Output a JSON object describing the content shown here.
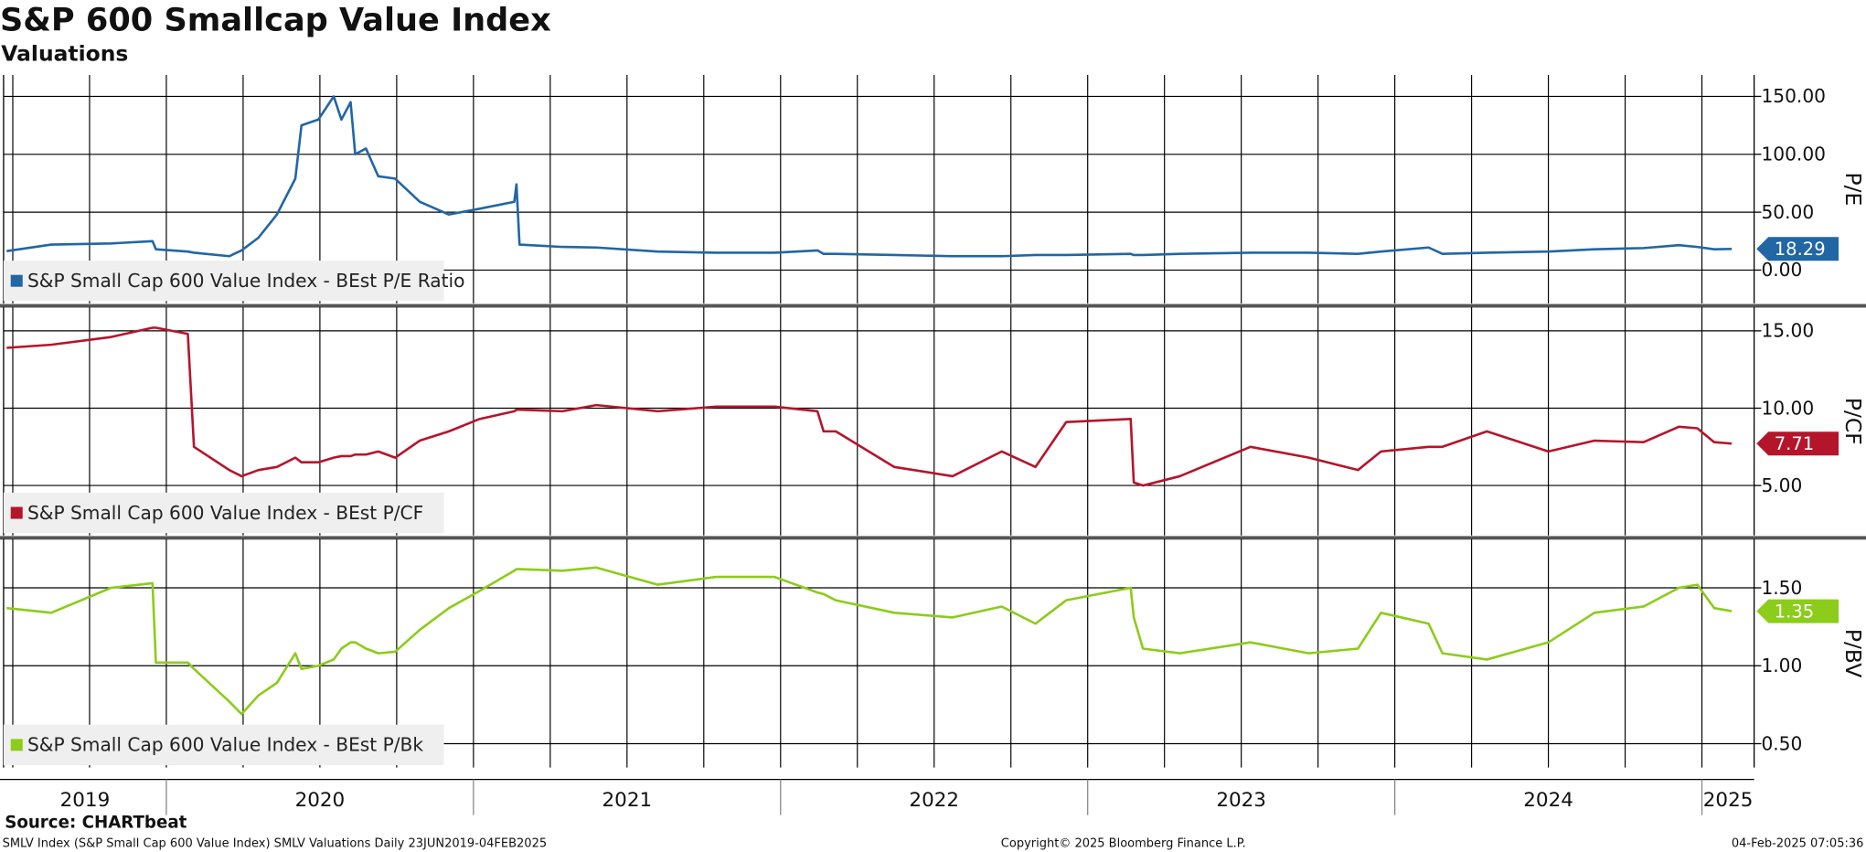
{
  "title": "S&P 600 Smallcap Value Index",
  "subtitle": "Valuations",
  "source": "Source: CHARTbeat",
  "footer": {
    "left": "SMLV Index (S&P Small Cap 600 Value Index) SMLV Valuations  Daily 23JUN2019-04FEB2025",
    "center": "Copyright© 2025 Bloomberg Finance L.P.",
    "right": "04-Feb-2025 07:05:36"
  },
  "chart_data": [
    {
      "type": "line",
      "ylabel": "P/E",
      "x": [
        2019.48,
        2019.625,
        2019.82,
        2019.955,
        2019.966,
        2020.07,
        2020.09,
        2020.205,
        2020.245,
        2020.3,
        2020.36,
        2020.42,
        2020.44,
        2020.495,
        2020.545,
        2020.57,
        2020.6,
        2020.615,
        2020.65,
        2020.69,
        2020.745,
        2020.825,
        2020.92,
        2021.02,
        2021.133,
        2021.14,
        2021.15,
        2021.29,
        2021.4,
        2021.6,
        2021.79,
        2021.98,
        2022.12,
        2022.14,
        2022.18,
        2022.37,
        2022.56,
        2022.72,
        2022.83,
        2022.93,
        2023.14,
        2023.15,
        2023.18,
        2023.3,
        2023.53,
        2023.72,
        2023.88,
        2023.955,
        2024.11,
        2024.155,
        2024.3,
        2024.5,
        2024.65,
        2024.81,
        2024.925,
        2024.985,
        2025.04,
        2025.097
      ],
      "series": [
        {
          "name": "S&P Small Cap 600 Value Index - BEst P/E Ratio",
          "color": "#2166a5",
          "values": [
            16.4,
            22,
            23,
            25,
            18,
            16,
            15,
            12,
            17,
            28,
            48,
            79,
            125,
            130,
            150,
            130,
            145,
            100,
            105,
            81,
            79,
            59,
            48,
            53,
            59,
            74,
            22,
            20,
            19.5,
            16,
            15,
            15,
            17,
            14,
            14,
            13,
            12,
            12,
            13,
            13,
            14,
            13,
            13,
            14,
            15,
            15,
            14,
            16,
            19.5,
            14,
            15,
            16,
            18,
            19,
            21.5,
            20,
            18,
            18.29
          ]
        }
      ],
      "xlim": [
        2019.47,
        2025.17
      ],
      "xticks": [
        2019.5,
        2019.75,
        2020,
        2020.25,
        2020.5,
        2020.75,
        2021,
        2021.25,
        2021.5,
        2021.75,
        2022,
        2022.25,
        2022.5,
        2022.75,
        2023,
        2023.25,
        2023.5,
        2023.75,
        2024,
        2024.25,
        2024.5,
        2024.75,
        2025
      ],
      "ylim": [
        -28.8,
        168.5
      ],
      "yticks": [
        {
          "value": 0,
          "label": "0.00"
        },
        {
          "value": 50,
          "label": "50.00"
        },
        {
          "value": 100,
          "label": "100.00"
        },
        {
          "value": 150,
          "label": "150.00"
        }
      ],
      "grid": true
    },
    {
      "type": "line",
      "ylabel": "P/CF",
      "x": [
        2019.48,
        2019.625,
        2019.82,
        2019.955,
        2019.966,
        2020.07,
        2020.09,
        2020.205,
        2020.245,
        2020.3,
        2020.36,
        2020.42,
        2020.44,
        2020.495,
        2020.545,
        2020.57,
        2020.6,
        2020.615,
        2020.65,
        2020.69,
        2020.745,
        2020.825,
        2020.92,
        2021.02,
        2021.133,
        2021.14,
        2021.15,
        2021.29,
        2021.4,
        2021.6,
        2021.79,
        2021.98,
        2022.12,
        2022.14,
        2022.18,
        2022.37,
        2022.56,
        2022.72,
        2022.83,
        2022.93,
        2023.14,
        2023.15,
        2023.18,
        2023.3,
        2023.53,
        2023.72,
        2023.88,
        2023.955,
        2024.11,
        2024.155,
        2024.3,
        2024.5,
        2024.65,
        2024.81,
        2024.925,
        2024.985,
        2025.04,
        2025.097
      ],
      "series": [
        {
          "name": "S&P Small Cap 600 Value Index - BEst P/CF",
          "color": "#b5152b",
          "values": [
            13.9,
            14.1,
            14.6,
            15.2,
            15.2,
            14.8,
            7.5,
            6.0,
            5.6,
            6.0,
            6.2,
            6.8,
            6.5,
            6.5,
            6.8,
            6.9,
            6.9,
            7.0,
            7.0,
            7.2,
            6.8,
            7.9,
            8.5,
            9.3,
            9.8,
            9.9,
            9.9,
            9.8,
            10.2,
            9.8,
            10.1,
            10.1,
            9.8,
            8.5,
            8.5,
            6.2,
            5.6,
            7.2,
            6.2,
            9.1,
            9.3,
            5.2,
            5.0,
            5.6,
            7.5,
            6.8,
            6.0,
            7.2,
            7.5,
            7.5,
            8.5,
            7.2,
            7.9,
            7.8,
            8.8,
            8.7,
            7.8,
            7.71
          ]
        }
      ],
      "xlim": [
        2019.47,
        2025.17
      ],
      "xticks": [
        2019.5,
        2019.75,
        2020,
        2020.25,
        2020.5,
        2020.75,
        2021,
        2021.25,
        2021.5,
        2021.75,
        2022,
        2022.25,
        2022.5,
        2022.75,
        2023,
        2023.25,
        2023.5,
        2023.75,
        2024,
        2024.25,
        2024.5,
        2024.75,
        2025
      ],
      "ylim": [
        1.77,
        16.54
      ],
      "yticks": [
        {
          "value": 5,
          "label": "5.00"
        },
        {
          "value": 10,
          "label": "10.00"
        },
        {
          "value": 15,
          "label": "15.00"
        }
      ],
      "grid": true
    },
    {
      "type": "line",
      "ylabel": "P/BV",
      "x": [
        2019.48,
        2019.625,
        2019.82,
        2019.955,
        2019.966,
        2020.07,
        2020.09,
        2020.205,
        2020.245,
        2020.3,
        2020.36,
        2020.42,
        2020.44,
        2020.495,
        2020.545,
        2020.57,
        2020.6,
        2020.615,
        2020.65,
        2020.69,
        2020.745,
        2020.825,
        2020.92,
        2021.02,
        2021.133,
        2021.14,
        2021.15,
        2021.29,
        2021.4,
        2021.6,
        2021.79,
        2021.98,
        2022.12,
        2022.14,
        2022.18,
        2022.37,
        2022.56,
        2022.72,
        2022.83,
        2022.93,
        2023.14,
        2023.15,
        2023.18,
        2023.3,
        2023.53,
        2023.72,
        2023.88,
        2023.955,
        2024.11,
        2024.155,
        2024.3,
        2024.5,
        2024.65,
        2024.81,
        2024.925,
        2024.985,
        2025.04,
        2025.097
      ],
      "series": [
        {
          "name": "S&P Small Cap 600 Value Index - BEst P/Bk",
          "color": "#8ccc1a",
          "values": [
            1.37,
            1.34,
            1.5,
            1.53,
            1.02,
            1.02,
            0.98,
            0.77,
            0.69,
            0.81,
            0.89,
            1.08,
            0.98,
            1.0,
            1.04,
            1.11,
            1.15,
            1.15,
            1.11,
            1.08,
            1.09,
            1.23,
            1.37,
            1.48,
            1.61,
            1.62,
            1.62,
            1.61,
            1.63,
            1.52,
            1.57,
            1.57,
            1.47,
            1.46,
            1.42,
            1.34,
            1.31,
            1.38,
            1.27,
            1.42,
            1.5,
            1.31,
            1.11,
            1.08,
            1.15,
            1.08,
            1.11,
            1.34,
            1.27,
            1.08,
            1.04,
            1.15,
            1.34,
            1.38,
            1.5,
            1.52,
            1.37,
            1.35
          ]
        }
      ],
      "xlim": [
        2019.47,
        2025.17
      ],
      "xticks": [
        2019.5,
        2019.75,
        2020,
        2020.25,
        2020.5,
        2020.75,
        2021,
        2021.25,
        2021.5,
        2021.75,
        2022,
        2022.25,
        2022.5,
        2022.75,
        2023,
        2023.25,
        2023.5,
        2023.75,
        2024,
        2024.25,
        2024.5,
        2024.75,
        2025
      ],
      "year_labels": [
        2019,
        2020,
        2021,
        2022,
        2023,
        2024,
        2025
      ],
      "ylim": [
        0.347,
        1.813
      ],
      "yticks": [
        {
          "value": 0.5,
          "label": "0.50"
        },
        {
          "value": 1,
          "label": "1.00"
        },
        {
          "value": 1.5,
          "label": "1.50"
        }
      ],
      "grid": true
    }
  ]
}
